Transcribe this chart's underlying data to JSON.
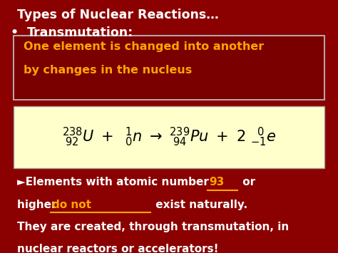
{
  "bg_color": "#8B0000",
  "title_text": "Types of Nuclear Reactions…",
  "bullet_char": "•",
  "bullet_text": "Transmutation:",
  "definition_box_facecolor": "#7A0000",
  "definition_box_edgecolor": "#BBBBBB",
  "definition_text_color": "#FFA500",
  "definition_line1": "One element is changed into another",
  "definition_line2": "by changes in the nucleus",
  "equation_box_bg": "#FFFFCC",
  "equation_box_edgecolor": "#999999",
  "equation_color": "#000000",
  "bottom_text_color": "#FFFFFF",
  "highlight_color": "#FFA500",
  "bottom_line1_pre": "►Elements with atomic number ",
  "bottom_line1_num": "93",
  "bottom_line1_post": " or",
  "bottom_line2_pre": "higher ",
  "bottom_line2_mid": "do not",
  "bottom_line2_post": "             exist naturally.",
  "bottom_line3": "They are created, through transmutation, in",
  "bottom_line4": "nuclear reactors or accelerators!",
  "title_fontsize": 12.5,
  "bullet_fontsize": 12.5,
  "def_fontsize": 11.5,
  "eq_fontsize": 15,
  "body_fontsize": 11.0
}
